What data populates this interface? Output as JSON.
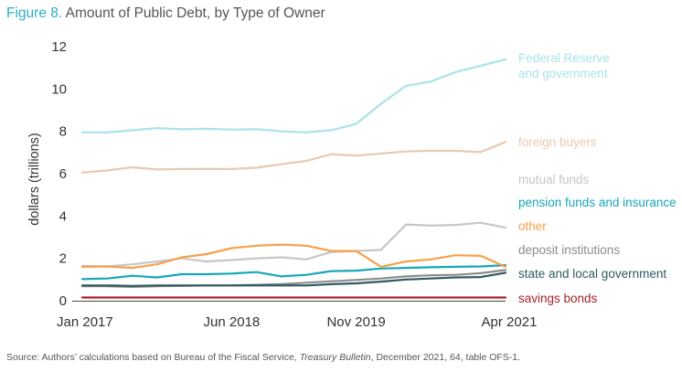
{
  "figure": {
    "number_label": "Figure 8.",
    "title": "Amount of Public Debt, by Type of Owner"
  },
  "source": {
    "prefix": "Source: Authors’ calculations based on Bureau of the Fiscal Service, ",
    "publication": "Treasury Bulletin",
    "suffix": ", December 2021, 64, table OFS-1."
  },
  "chart_data": {
    "type": "line",
    "ylabel": "dollars (trillions)",
    "xlabel": "",
    "ylim": [
      0,
      12
    ],
    "yticks": [
      0,
      2,
      4,
      6,
      8,
      10,
      12
    ],
    "x_tick_labels": [
      "Jan 2017",
      "Jun 2018",
      "Nov 2019",
      "Apr 2021"
    ],
    "x": [
      "2017-01",
      "2017-04",
      "2017-07",
      "2017-10",
      "2018-01",
      "2018-04",
      "2018-07",
      "2018-10",
      "2019-01",
      "2019-04",
      "2019-07",
      "2019-10",
      "2020-01",
      "2020-04",
      "2020-07",
      "2020-10",
      "2021-01",
      "2021-04"
    ],
    "legend_placement": "right",
    "grid": false,
    "series": [
      {
        "name": "Federal Reserve and government",
        "color": "#a8e3ea",
        "values": [
          7.95,
          7.95,
          8.05,
          8.15,
          8.1,
          8.12,
          8.08,
          8.1,
          8.0,
          7.95,
          8.05,
          8.35,
          9.3,
          10.15,
          10.35,
          10.8,
          11.1,
          11.4
        ]
      },
      {
        "name": "foreign buyers",
        "color": "#e8c9b4",
        "values": [
          6.05,
          6.15,
          6.3,
          6.2,
          6.22,
          6.22,
          6.22,
          6.28,
          6.45,
          6.6,
          6.92,
          6.85,
          6.95,
          7.05,
          7.08,
          7.08,
          7.02,
          7.5
        ]
      },
      {
        "name": "mutual funds",
        "color": "#c6c6c6",
        "values": [
          1.65,
          1.62,
          1.72,
          1.85,
          2.0,
          1.85,
          1.92,
          2.0,
          2.05,
          1.95,
          2.3,
          2.35,
          2.4,
          3.6,
          3.55,
          3.58,
          3.68,
          3.45
        ]
      },
      {
        "name": "pension funds and insurance",
        "color": "#17a7b9",
        "values": [
          1.02,
          1.05,
          1.18,
          1.1,
          1.25,
          1.25,
          1.28,
          1.35,
          1.15,
          1.22,
          1.4,
          1.42,
          1.52,
          1.55,
          1.58,
          1.6,
          1.62,
          1.68
        ]
      },
      {
        "name": "other",
        "color": "#f7a04a",
        "values": [
          1.6,
          1.62,
          1.55,
          1.72,
          2.05,
          2.2,
          2.48,
          2.6,
          2.65,
          2.6,
          2.35,
          2.35,
          1.6,
          1.85,
          1.95,
          2.15,
          2.12,
          1.6
        ]
      },
      {
        "name": "deposit institutions",
        "color": "#8c8c8c",
        "values": [
          0.68,
          0.68,
          0.65,
          0.68,
          0.7,
          0.72,
          0.72,
          0.75,
          0.78,
          0.85,
          0.92,
          0.98,
          1.05,
          1.15,
          1.2,
          1.22,
          1.3,
          1.45
        ]
      },
      {
        "name": "state and local government",
        "color": "#2e5a60",
        "values": [
          0.72,
          0.72,
          0.7,
          0.72,
          0.72,
          0.72,
          0.72,
          0.72,
          0.72,
          0.72,
          0.78,
          0.82,
          0.9,
          1.0,
          1.05,
          1.1,
          1.12,
          1.32
        ]
      },
      {
        "name": "savings bonds",
        "color": "#a8202a",
        "values": [
          0.15,
          0.15,
          0.15,
          0.15,
          0.15,
          0.15,
          0.15,
          0.15,
          0.15,
          0.15,
          0.15,
          0.15,
          0.15,
          0.15,
          0.15,
          0.15,
          0.15,
          0.15
        ]
      }
    ]
  }
}
